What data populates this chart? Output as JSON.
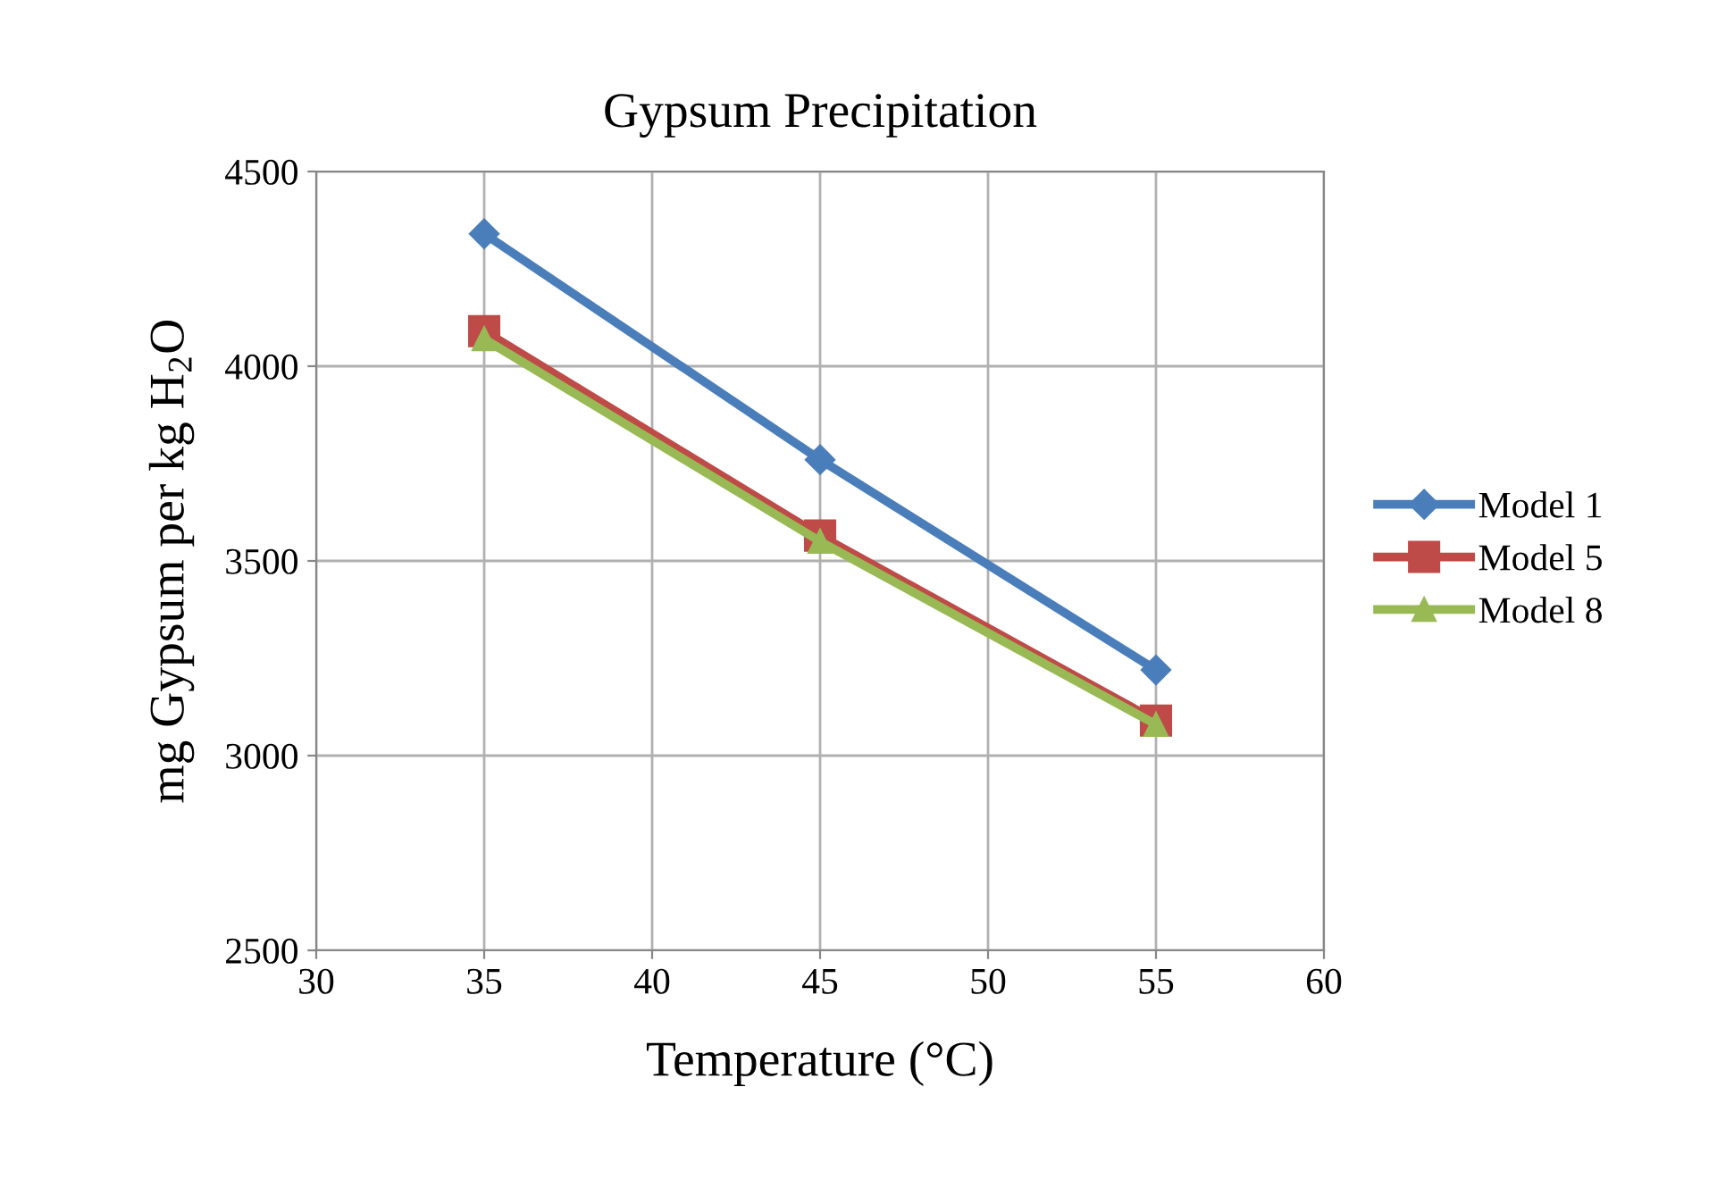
{
  "chart_data": {
    "type": "line",
    "title": "Gypsum Precipitation",
    "xlabel": "Temperature (°C)",
    "ylabel": "mg Gypsum per kg H$_{2}$O",
    "x": [
      35,
      45,
      55
    ],
    "series": [
      {
        "name": "Model 1",
        "color": "#4a7ebb",
        "values": [
          4340,
          3760,
          3220
        ],
        "marker": "diamond"
      },
      {
        "name": "Model 5",
        "color": "#be4b48",
        "values": [
          4090,
          3565,
          3090
        ],
        "marker": "square"
      },
      {
        "name": "Model 8",
        "color": "#98b954",
        "values": [
          4070,
          3550,
          3080
        ],
        "marker": "triangle"
      }
    ],
    "xlim": [
      30,
      60
    ],
    "xticks": [
      30,
      35,
      40,
      45,
      50,
      55,
      60
    ],
    "ylim": [
      2500,
      4500
    ],
    "yticks": [
      2500,
      3000,
      3500,
      4000,
      4500
    ],
    "grid": true,
    "legend": "right",
    "line_style": "solid"
  }
}
